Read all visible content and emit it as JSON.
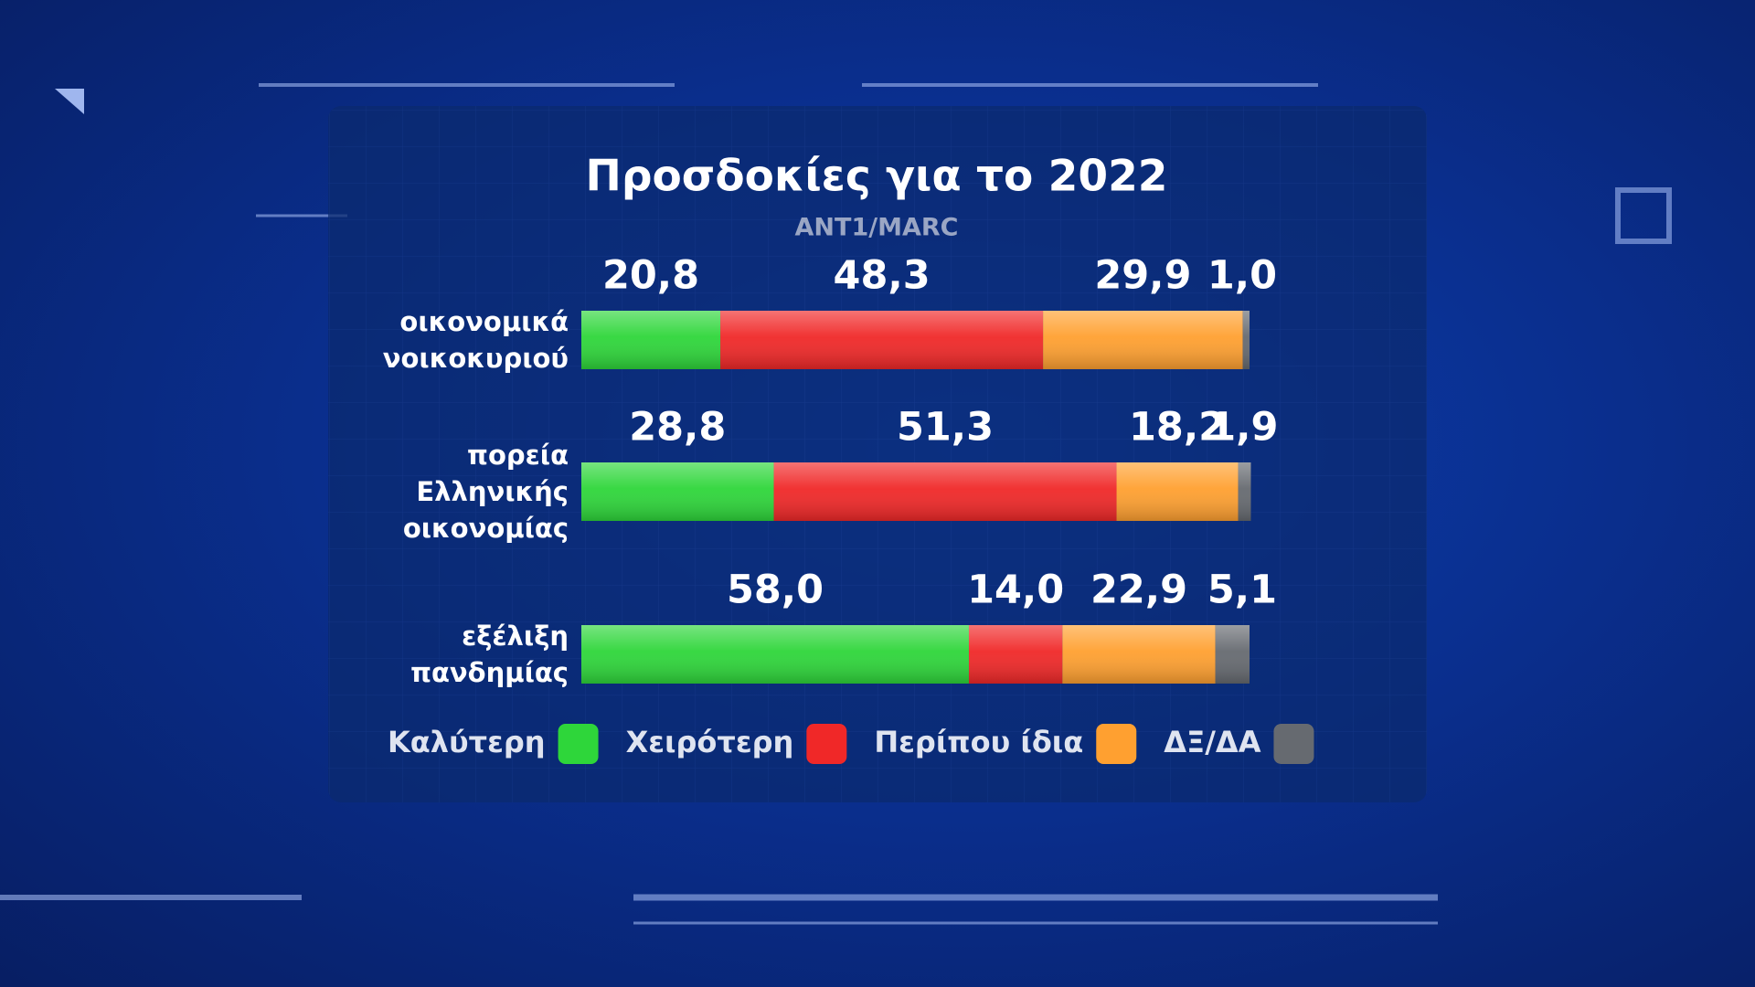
{
  "chart_data": {
    "type": "stacked-bar-horizontal",
    "title": "Προσδοκίες για το 2022",
    "subtitle": "ANT1/MARC",
    "categories": [
      "οικονομικά νοικοκυριού",
      "πορεία Ελληνικής οικονομίας",
      "εξέλιξη πανδημίας"
    ],
    "series": [
      {
        "name": "Καλύτερη",
        "color": "#2ed63a",
        "values": [
          20.8,
          28.8,
          58.0
        ],
        "value_labels": [
          "20,8",
          "28,8",
          "58,0"
        ]
      },
      {
        "name": "Χειρότερη",
        "color": "#f02828",
        "values": [
          48.3,
          51.3,
          14.0
        ],
        "value_labels": [
          "48,3",
          "51,3",
          "14,0"
        ]
      },
      {
        "name": "Περίπου ίδια",
        "color": "#ffa030",
        "values": [
          29.9,
          18.2,
          22.9
        ],
        "value_labels": [
          "29,9",
          "18,2",
          "22,9"
        ]
      },
      {
        "name": "ΔΞ/ΔΑ",
        "color": "#666a70",
        "values": [
          1.0,
          1.9,
          5.1
        ],
        "value_labels": [
          "1,0",
          "1,9",
          "5,1"
        ]
      }
    ]
  }
}
